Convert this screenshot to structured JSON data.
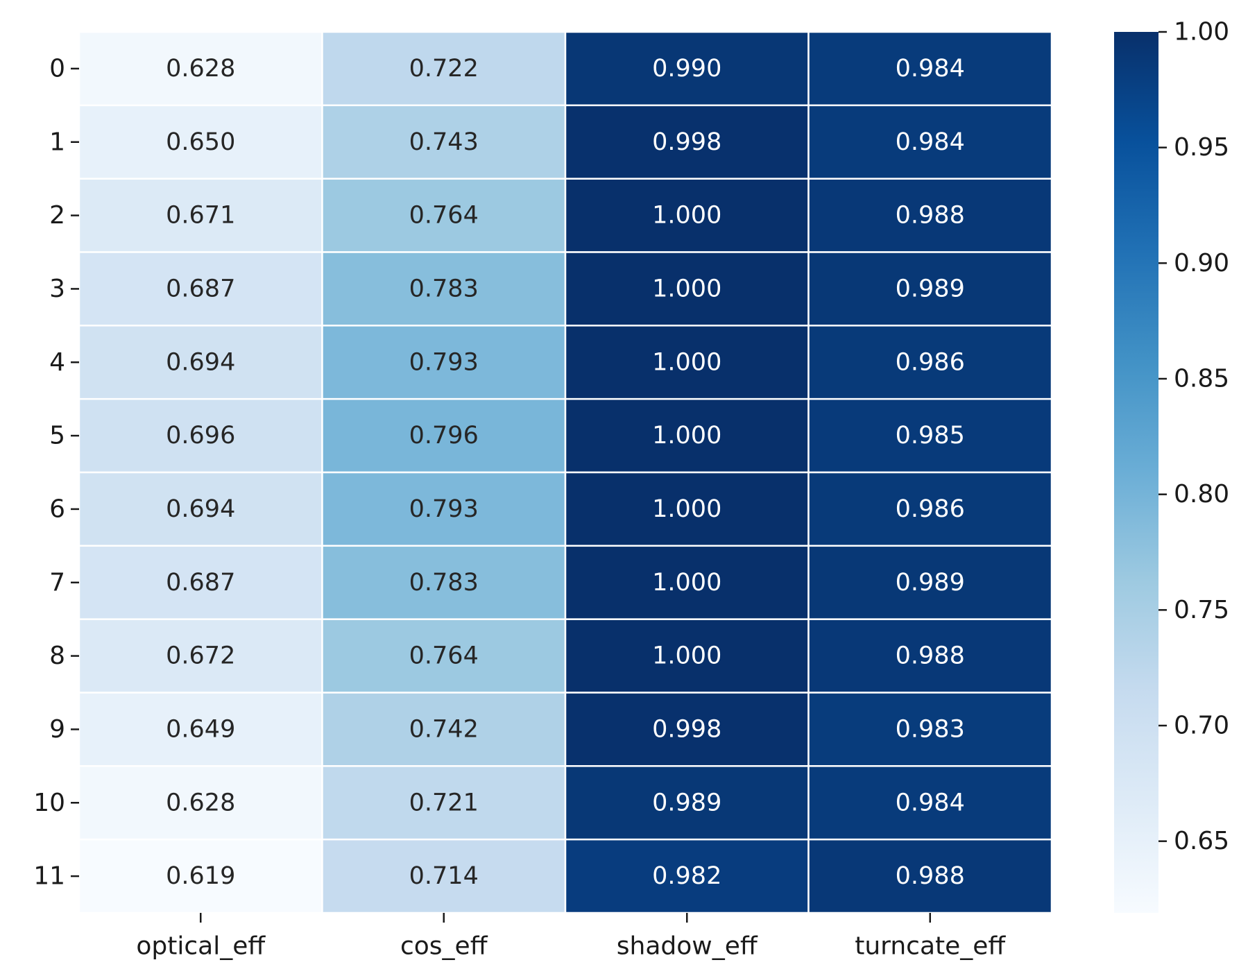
{
  "chart_data": {
    "type": "heatmap",
    "title": "",
    "xlabel": "",
    "ylabel": "",
    "columns": [
      "optical_eff",
      "cos_eff",
      "shadow_eff",
      "turncate_eff"
    ],
    "rows": [
      "0",
      "1",
      "2",
      "3",
      "4",
      "5",
      "6",
      "7",
      "8",
      "9",
      "10",
      "11"
    ],
    "values": [
      [
        0.628,
        0.722,
        0.99,
        0.984
      ],
      [
        0.65,
        0.743,
        0.998,
        0.984
      ],
      [
        0.671,
        0.764,
        1.0,
        0.988
      ],
      [
        0.687,
        0.783,
        1.0,
        0.989
      ],
      [
        0.694,
        0.793,
        1.0,
        0.986
      ],
      [
        0.696,
        0.796,
        1.0,
        0.985
      ],
      [
        0.694,
        0.793,
        1.0,
        0.986
      ],
      [
        0.687,
        0.783,
        1.0,
        0.989
      ],
      [
        0.672,
        0.764,
        1.0,
        0.988
      ],
      [
        0.649,
        0.742,
        0.998,
        0.983
      ],
      [
        0.628,
        0.721,
        0.989,
        0.984
      ],
      [
        0.619,
        0.714,
        0.982,
        0.988
      ]
    ],
    "value_format": "0.000",
    "colormap": "Blues",
    "colorbar": {
      "range": [
        0.619,
        1.0
      ],
      "ticks": [
        0.65,
        0.7,
        0.75,
        0.8,
        0.85,
        0.9,
        0.95,
        1.0
      ],
      "tick_labels": [
        "0.65",
        "0.70",
        "0.75",
        "0.80",
        "0.85",
        "0.90",
        "0.95",
        "1.00"
      ]
    },
    "grid": false,
    "cell_borders": "#ffffff"
  }
}
